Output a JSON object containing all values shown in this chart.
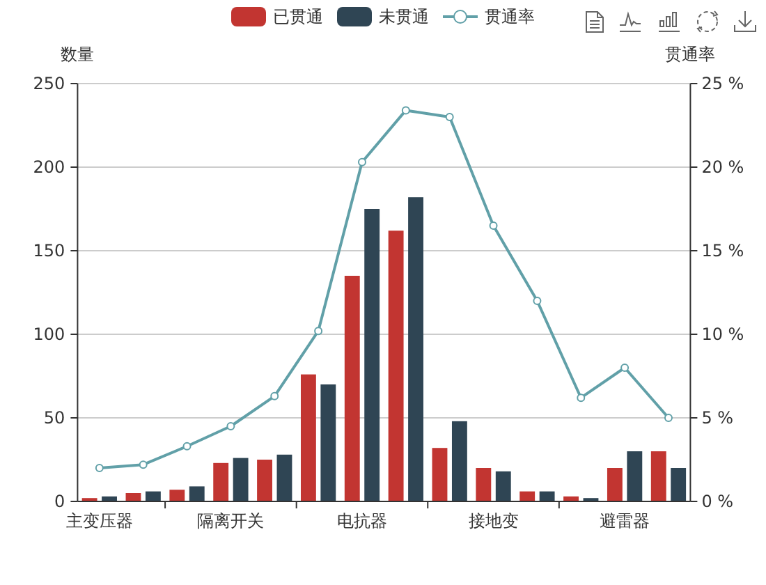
{
  "chart_data": {
    "type": "bar",
    "categories": [
      "主变压器",
      null,
      null,
      "隔离开关",
      null,
      null,
      "电抗器",
      null,
      null,
      "接地变",
      null,
      null,
      "避雷器",
      null
    ],
    "ylabel": "数量",
    "y2label": "贯通率",
    "ylim": [
      0,
      250
    ],
    "yticks": [
      0,
      50,
      100,
      150,
      200,
      250
    ],
    "y2lim": [
      0,
      25
    ],
    "y2ticks": [
      {
        "value": 0,
        "label": "0 %"
      },
      {
        "value": 5,
        "label": "5 %"
      },
      {
        "value": 10,
        "label": "10 %"
      },
      {
        "value": 15,
        "label": "15 %"
      },
      {
        "value": 20,
        "label": "20 %"
      },
      {
        "value": 25,
        "label": "25 %"
      }
    ],
    "grid": "y",
    "legend": "top",
    "series": [
      {
        "name": "已贯通",
        "color": "#c23531",
        "values": [
          2,
          5,
          7,
          23,
          25,
          76,
          135,
          162,
          32,
          20,
          6,
          3,
          20,
          30
        ]
      },
      {
        "name": "未贯通",
        "color": "#2f4554",
        "values": [
          3,
          6,
          9,
          26,
          28,
          70,
          175,
          182,
          48,
          18,
          6,
          2,
          30,
          20
        ]
      },
      {
        "name": "贯通率",
        "type": "line",
        "axis": "y2",
        "color": "#61a0a8",
        "marker": "circle",
        "values": [
          2.0,
          2.2,
          3.3,
          4.5,
          6.3,
          10.2,
          20.3,
          23.4,
          23.0,
          16.5,
          12.0,
          6.2,
          8.0,
          5.0
        ]
      }
    ]
  }
}
